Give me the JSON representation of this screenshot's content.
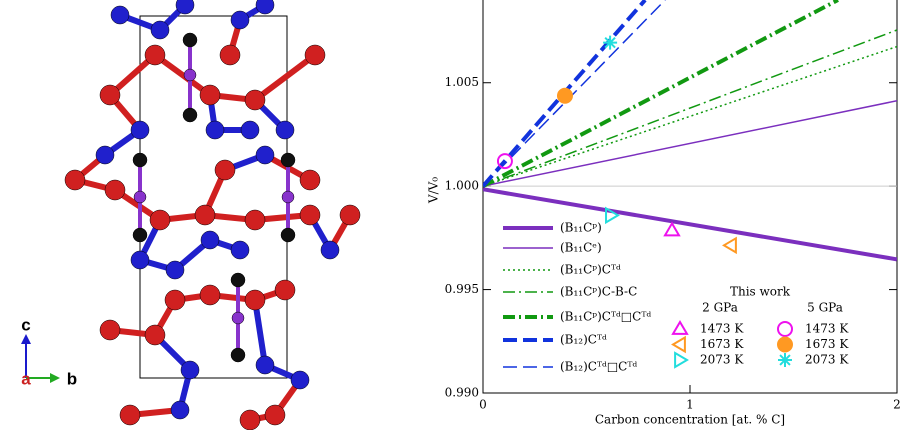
{
  "structure": {
    "axis_labels": {
      "c": "c",
      "a": "a",
      "b": "b"
    }
  },
  "chart_data": {
    "type": "line",
    "x_label": "Carbon concentration [at. % C]",
    "y_label": "V/V₀",
    "xlim": [
      0,
      2
    ],
    "xticks": [
      0,
      1,
      2
    ],
    "ylim": [
      0.99,
      1.009
    ],
    "yticks": [
      {
        "value": 0.99,
        "label": "0.990"
      },
      {
        "value": 0.995,
        "label": "0.995"
      },
      {
        "value": 1.0,
        "label": "1.000"
      },
      {
        "value": 1.005,
        "label": "1.005"
      }
    ],
    "hline": 1.0,
    "series": [
      {
        "name": "(B₁₁Cᵖ)",
        "color": "#7b2fbe",
        "width": 4,
        "dash": "solid",
        "x": [
          0,
          2
        ],
        "values": [
          0.99985,
          0.99646
        ]
      },
      {
        "name": "(B₁₁Cᵉ)",
        "color": "#7b2fbe",
        "width": 1.5,
        "dash": "solid",
        "x": [
          0,
          2
        ],
        "values": [
          1.0,
          1.00413
        ]
      },
      {
        "name": "(B₁₁Cᵖ)Cᵀᵈ",
        "color": "#119911",
        "width": 1.5,
        "dash": "dot",
        "x": [
          0,
          2
        ],
        "values": [
          1.0,
          1.00675
        ]
      },
      {
        "name": "(B₁₁Cᵖ)C-B-C",
        "color": "#119911",
        "width": 1.5,
        "dash": "dashdot",
        "x": [
          0,
          2
        ],
        "values": [
          1.0,
          1.00755
        ]
      },
      {
        "name": "(B₁₁Cᵖ)Cᵀᵈ□Cᵀᵈ",
        "color": "#119911",
        "width": 4,
        "dash": "dashdot",
        "x": [
          0,
          1.715
        ],
        "values": [
          1.0,
          1.009
        ]
      },
      {
        "name": "(B₁₂)Cᵀᵈ",
        "color": "#1133dd",
        "width": 4,
        "dash": "dash",
        "x": [
          0,
          0.783
        ],
        "values": [
          1.0,
          1.009
        ]
      },
      {
        "name": "(B₁₂)Cᵀᵈ□Cᵀᵈ",
        "color": "#1133dd",
        "width": 1.5,
        "dash": "dash",
        "x": [
          0,
          0.88
        ],
        "values": [
          1.0,
          1.009
        ]
      }
    ],
    "legend_title": "This work",
    "groups": [
      {
        "name": "2 GPa",
        "series": [
          {
            "name": "1473 K",
            "color": "#ee11ee",
            "marker": "triangle-up",
            "x": [
              0.913
            ],
            "values": [
              0.99786
            ]
          },
          {
            "name": "1673 K",
            "color": "#ff9922",
            "marker": "triangle-left",
            "x": [
              1.198
            ],
            "values": [
              0.99714
            ]
          },
          {
            "name": "2073 K",
            "color": "#22dddd",
            "marker": "triangle-right",
            "x": [
              0.618
            ],
            "values": [
              0.99859
            ]
          }
        ]
      },
      {
        "name": "5 GPa",
        "series": [
          {
            "name": "1473 K",
            "color": "#ee11ee",
            "marker": "circle-open",
            "x": [
              0.106
            ],
            "values": [
              1.00121
            ]
          },
          {
            "name": "1673 K",
            "color": "#ff9922",
            "marker": "circle-filled",
            "x": [
              0.396
            ],
            "values": [
              1.00437
            ]
          },
          {
            "name": "2073 K",
            "color": "#22dddd",
            "marker": "star",
            "x": [
              0.614
            ],
            "values": [
              1.00694
            ]
          }
        ]
      }
    ]
  }
}
